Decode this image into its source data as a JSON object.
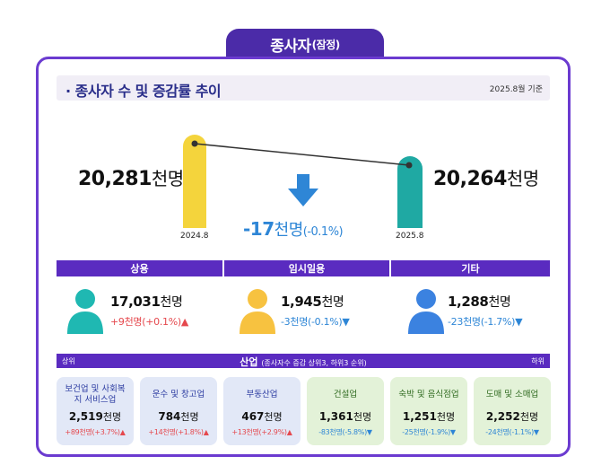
{
  "title": {
    "main": "종사자",
    "sub": "(잠정)"
  },
  "header": {
    "title": "· 종사자 수 및 증감률 추이",
    "date": "2025.8월 기준"
  },
  "comparison": {
    "left": {
      "value": "20,281",
      "unit": "천명",
      "year": "2024.8"
    },
    "right": {
      "value": "20,264",
      "unit": "천명",
      "year": "2025.8"
    },
    "change": {
      "value": "-17",
      "unit": "천명",
      "pct": "(-0.1%)"
    }
  },
  "categories": [
    {
      "label": "상용",
      "value": "17,031",
      "unit": "천명",
      "change": "+9천명(+0.1%)",
      "direction": "up",
      "color": "#1fb8b2"
    },
    {
      "label": "임시일용",
      "value": "1,945",
      "unit": "천명",
      "change": "-3천명(-0.1%)",
      "direction": "down",
      "color": "#f7c240"
    },
    {
      "label": "기타",
      "value": "1,288",
      "unit": "천명",
      "change": "-23천명(-1.7%)",
      "direction": "down",
      "color": "#3b82e0"
    }
  ],
  "industry": {
    "label": "산업",
    "note": "(종사자수 증감 상위3, 하위3 순위)",
    "left_label": "상위",
    "right_label": "하위",
    "items": [
      {
        "name": "보건업 및 사회복지 서비스업",
        "value": "2,519",
        "unit": "천명",
        "change": "+89천명(+3.7%)",
        "direction": "up"
      },
      {
        "name": "운수 및 창고업",
        "value": "784",
        "unit": "천명",
        "change": "+14천명(+1.8%)",
        "direction": "up"
      },
      {
        "name": "부동산업",
        "value": "467",
        "unit": "천명",
        "change": "+13천명(+2.9%)",
        "direction": "up"
      },
      {
        "name": "건설업",
        "value": "1,361",
        "unit": "천명",
        "change": "-83천명(-5.8%)",
        "direction": "down"
      },
      {
        "name": "숙박 및 음식점업",
        "value": "1,251",
        "unit": "천명",
        "change": "-25천명(-1.9%)",
        "direction": "down"
      },
      {
        "name": "도매 및 소매업",
        "value": "2,252",
        "unit": "천명",
        "change": "-24천명(-1.1%)",
        "direction": "down"
      }
    ]
  },
  "colors": {
    "accent": "#5a2bc0",
    "up": "#e5484d",
    "down": "#2e86d6",
    "pill_left": "#f4d43c",
    "pill_right": "#1fa9a3"
  }
}
